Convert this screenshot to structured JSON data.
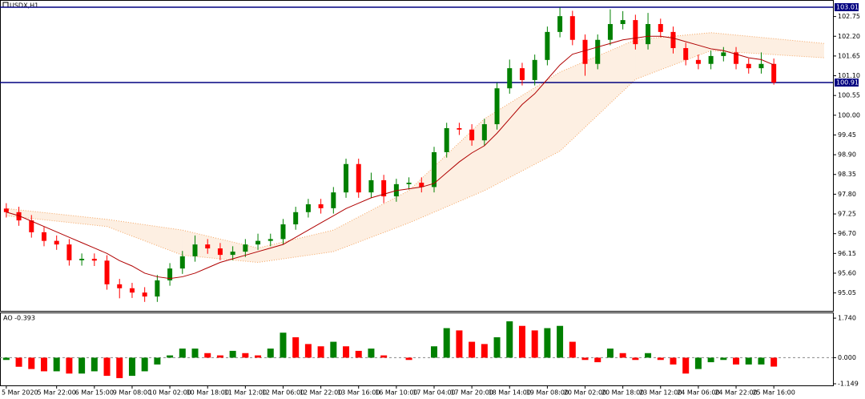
{
  "chart_data": {
    "type": "candlestick",
    "title": "USDX,H1",
    "xlim": [
      -0.5,
      65.7
    ],
    "xticks": [
      {
        "value": 0,
        "label": "5 Mar 2020"
      },
      {
        "value": 4,
        "label": "5 Mar 22:00"
      },
      {
        "value": 7,
        "label": "6 Mar 15:00"
      },
      {
        "value": 10,
        "label": "9 Mar 08:00"
      },
      {
        "value": 13,
        "label": "10 Mar 02:00"
      },
      {
        "value": 16,
        "label": "10 Mar 18:00"
      },
      {
        "value": 19,
        "label": "11 Mar 12:00"
      },
      {
        "value": 22,
        "label": "12 Mar 06:00"
      },
      {
        "value": 25,
        "label": "12 Mar 22:00"
      },
      {
        "value": 28,
        "label": "13 Mar 16:00"
      },
      {
        "value": 31,
        "label": "16 Mar 10:00"
      },
      {
        "value": 34,
        "label": "17 Mar 04:00"
      },
      {
        "value": 37,
        "label": "17 Mar 20:00"
      },
      {
        "value": 40,
        "label": "18 Mar 14:00"
      },
      {
        "value": 43,
        "label": "19 Mar 08:00"
      },
      {
        "value": 46,
        "label": "20 Mar 02:00"
      },
      {
        "value": 49,
        "label": "20 Mar 18:00"
      },
      {
        "value": 52,
        "label": "23 Mar 12:00"
      },
      {
        "value": 55,
        "label": "24 Mar 06:00"
      },
      {
        "value": 58,
        "label": "24 Mar 22:00"
      },
      {
        "value": 61,
        "label": "25 Mar 16:00"
      }
    ],
    "ylim": [
      94.55,
      103.21
    ],
    "yticks": [
      102.75,
      {
        "value": 102.2,
        "label": "102.20"
      },
      101.65,
      {
        "value": 101.1,
        "label": "101.10"
      },
      100.55,
      {
        "value": 100,
        "label": "100.00"
      },
      99.45,
      {
        "value": 98.9,
        "label": "98.90"
      },
      98.35,
      {
        "value": 97.8,
        "label": "97.80"
      },
      97.25,
      {
        "value": 96.7,
        "label": "96.70"
      },
      96.15,
      {
        "value": 95.6,
        "label": "95.60"
      },
      95.05
    ],
    "up_color": "#008000",
    "down_color": "#ff0000",
    "open": [
      97.4,
      97.3,
      97.07,
      96.74,
      96.5,
      96.4,
      95.96,
      96.0,
      95.95,
      95.29,
      95.18,
      95.06,
      94.95,
      95.4,
      95.73,
      96.07,
      96.4,
      96.29,
      96.11,
      96.2,
      96.4,
      96.5,
      96.55,
      96.96,
      97.3,
      97.52,
      97.41,
      97.85,
      98.64,
      97.85,
      98.19,
      97.74,
      98.08,
      98.12,
      98.0,
      98.97,
      99.64,
      99.6,
      99.3,
      99.75,
      100.75,
      101.31,
      100.98,
      101.54,
      102.32,
      102.76,
      102.1,
      101.43,
      102.1,
      102.54,
      102.65,
      101.98,
      102.54,
      102.32,
      101.87,
      101.54,
      101.43,
      101.65,
      101.75,
      101.43,
      101.31,
      101.43
    ],
    "high": [
      97.55,
      97.45,
      97.22,
      96.89,
      96.65,
      96.55,
      96.15,
      96.15,
      96.1,
      95.44,
      95.33,
      95.21,
      95.55,
      95.88,
      96.22,
      96.65,
      96.55,
      96.44,
      96.35,
      96.55,
      96.7,
      96.7,
      97.11,
      97.45,
      97.67,
      97.67,
      98.0,
      98.79,
      98.79,
      98.4,
      98.34,
      98.23,
      98.27,
      98.27,
      99.12,
      99.79,
      99.79,
      99.75,
      99.9,
      100.9,
      101.55,
      101.46,
      101.69,
      102.47,
      103.0,
      102.91,
      102.25,
      102.25,
      102.95,
      102.9,
      102.8,
      102.85,
      102.69,
      102.47,
      102.02,
      101.69,
      101.8,
      101.9,
      101.9,
      101.58,
      101.75,
      101.58
    ],
    "low": [
      97.15,
      96.92,
      96.59,
      96.35,
      96.25,
      95.81,
      95.81,
      95.8,
      95.14,
      94.9,
      94.91,
      94.8,
      94.8,
      95.25,
      95.58,
      95.92,
      96.14,
      95.96,
      95.96,
      96.05,
      96.25,
      96.35,
      96.4,
      96.81,
      97.15,
      97.26,
      97.26,
      97.7,
      97.7,
      97.7,
      97.55,
      97.59,
      97.93,
      97.85,
      97.85,
      98.82,
      99.45,
      99.15,
      99.15,
      99.6,
      100.6,
      100.83,
      100.83,
      101.39,
      102.17,
      101.95,
      101.1,
      101.28,
      101.95,
      102.39,
      101.83,
      101.83,
      102.17,
      101.72,
      101.39,
      101.28,
      101.28,
      101.5,
      101.28,
      101.16,
      101.16,
      100.85
    ],
    "close": [
      97.3,
      97.07,
      96.74,
      96.5,
      96.4,
      95.96,
      96.0,
      95.95,
      95.29,
      95.18,
      95.06,
      94.95,
      95.4,
      95.73,
      96.07,
      96.4,
      96.29,
      96.11,
      96.2,
      96.4,
      96.5,
      96.55,
      96.96,
      97.3,
      97.52,
      97.41,
      97.85,
      98.64,
      97.85,
      98.19,
      97.74,
      98.08,
      98.12,
      98.0,
      98.97,
      99.64,
      99.6,
      99.3,
      99.75,
      100.75,
      101.31,
      100.98,
      101.54,
      102.32,
      102.76,
      102.1,
      101.43,
      102.1,
      102.54,
      102.65,
      101.98,
      102.54,
      102.32,
      101.87,
      101.54,
      101.43,
      101.65,
      101.75,
      101.43,
      101.31,
      101.43,
      100.91
    ],
    "ma": {
      "color": "#b00000",
      "values": [
        97.3,
        97.2,
        97.05,
        96.9,
        96.75,
        96.6,
        96.45,
        96.3,
        96.15,
        95.95,
        95.8,
        95.6,
        95.5,
        95.45,
        95.5,
        95.6,
        95.75,
        95.9,
        96.0,
        96.1,
        96.2,
        96.3,
        96.4,
        96.6,
        96.8,
        97.0,
        97.2,
        97.4,
        97.55,
        97.7,
        97.8,
        97.9,
        97.95,
        98.0,
        98.1,
        98.4,
        98.7,
        98.95,
        99.15,
        99.5,
        99.9,
        100.3,
        100.6,
        101.0,
        101.4,
        101.7,
        101.8,
        101.9,
        102.0,
        102.1,
        102.15,
        102.2,
        102.2,
        102.15,
        102.05,
        101.95,
        101.85,
        101.8,
        101.7,
        101.6,
        101.55,
        101.4
      ]
    },
    "cloud": {
      "color": "#f4a460",
      "x": [
        0,
        8,
        14,
        20,
        26,
        32,
        38,
        44,
        50,
        56,
        65
      ],
      "upper": [
        97.4,
        97.1,
        96.8,
        96.3,
        96.8,
        97.9,
        99.9,
        101.2,
        102.1,
        102.3,
        102.0
      ],
      "lower": [
        97.2,
        96.9,
        96.1,
        95.9,
        96.2,
        97.0,
        97.9,
        99.0,
        101.0,
        101.8,
        101.6
      ]
    },
    "hlines": {
      "color": "#000080",
      "values": [
        103.01,
        100.91
      ]
    },
    "ao": {
      "title": "AO -0.393",
      "up_color": "#008000",
      "down_color": "#ff0000",
      "ylim": [
        -1.22,
        1.99
      ],
      "yticks": [
        {
          "value": 1.74,
          "label": "1.740"
        },
        {
          "value": 0,
          "label": "0.000"
        },
        -1.149
      ],
      "values": [
        -0.1,
        -0.4,
        -0.5,
        -0.6,
        -0.6,
        -0.7,
        -0.7,
        -0.6,
        -0.8,
        -0.9,
        -0.8,
        -0.6,
        -0.3,
        0.1,
        0.4,
        0.4,
        0.2,
        0.1,
        0.3,
        0.2,
        0.1,
        0.4,
        1.1,
        0.9,
        0.6,
        0.5,
        0.7,
        0.5,
        0.3,
        0.4,
        0.1,
        0.0,
        -0.1,
        0.0,
        0.5,
        1.3,
        1.2,
        0.7,
        0.6,
        0.9,
        1.6,
        1.4,
        1.2,
        1.3,
        1.4,
        0.7,
        -0.1,
        -0.2,
        0.4,
        0.2,
        -0.1,
        0.2,
        -0.1,
        -0.3,
        -0.7,
        -0.5,
        -0.2,
        -0.1,
        -0.3,
        -0.3,
        -0.3,
        -0.393
      ]
    }
  }
}
